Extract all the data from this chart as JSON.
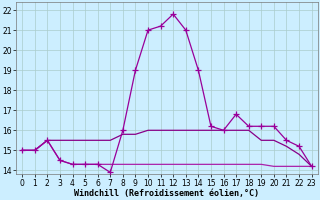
{
  "xlabel": "Windchill (Refroidissement éolien,°C)",
  "background_color": "#cceeff",
  "grid_color": "#aacccc",
  "line_color_main": "#990099",
  "line_color_flat1": "#880088",
  "line_color_flat2": "#aa22aa",
  "x_hours": [
    0,
    1,
    2,
    3,
    4,
    5,
    6,
    7,
    8,
    9,
    10,
    11,
    12,
    13,
    14,
    15,
    16,
    17,
    18,
    19,
    20,
    21,
    22,
    23
  ],
  "windchill_line": [
    15.0,
    15.0,
    15.5,
    14.5,
    14.3,
    14.3,
    14.3,
    13.9,
    16.0,
    19.0,
    21.0,
    21.2,
    21.8,
    21.0,
    19.0,
    16.2,
    16.0,
    16.8,
    16.2,
    16.2,
    16.2,
    15.5,
    15.2,
    14.2
  ],
  "temp_line": [
    15.0,
    15.0,
    15.5,
    15.5,
    15.5,
    15.5,
    15.5,
    15.5,
    15.8,
    15.8,
    16.0,
    16.0,
    16.0,
    16.0,
    16.0,
    16.0,
    16.0,
    16.0,
    16.0,
    15.5,
    15.5,
    15.2,
    14.8,
    14.2
  ],
  "min_line": [
    15.0,
    15.0,
    15.5,
    14.5,
    14.3,
    14.3,
    14.3,
    14.3,
    14.3,
    14.3,
    14.3,
    14.3,
    14.3,
    14.3,
    14.3,
    14.3,
    14.3,
    14.3,
    14.3,
    14.3,
    14.2,
    14.2,
    14.2,
    14.2
  ],
  "ylim": [
    13.8,
    22.4
  ],
  "xlim": [
    -0.5,
    23.5
  ],
  "yticks": [
    14,
    15,
    16,
    17,
    18,
    19,
    20,
    21,
    22
  ],
  "xticks": [
    0,
    1,
    2,
    3,
    4,
    5,
    6,
    7,
    8,
    9,
    10,
    11,
    12,
    13,
    14,
    15,
    16,
    17,
    18,
    19,
    20,
    21,
    22,
    23
  ],
  "xlabel_fontsize": 6,
  "tick_fontsize": 5.5,
  "linewidth": 0.9,
  "markersize": 4,
  "figsize": [
    3.2,
    2.0
  ],
  "dpi": 100
}
